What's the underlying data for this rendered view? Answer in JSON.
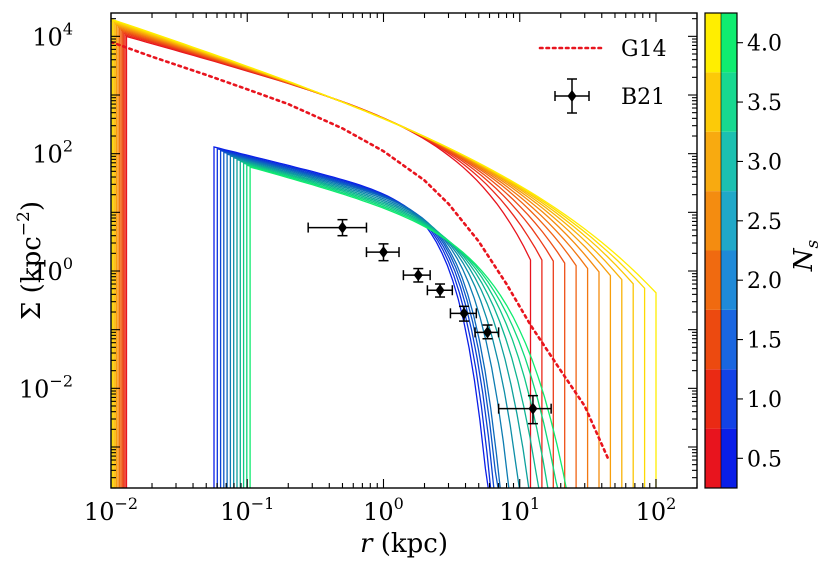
{
  "chart_data": {
    "type": "line",
    "xscale": "log",
    "yscale": "log",
    "xlabel_var": "r",
    "xlabel_unit": " (kpc)",
    "ylabel_var": "Σ",
    "ylabel_unit_open": " (kpc",
    "ylabel_unit_exp": "−2",
    "ylabel_unit_close": ")",
    "xlim": [
      0.01,
      200
    ],
    "ylim": [
      0.0002,
      25000
    ],
    "x_ticks": [
      {
        "value": 0.01,
        "base": "10",
        "exp": "−2"
      },
      {
        "value": 0.1,
        "base": "10",
        "exp": "−1"
      },
      {
        "value": 1,
        "base": "10",
        "exp": "0"
      },
      {
        "value": 10,
        "base": "10",
        "exp": "1"
      },
      {
        "value": 100,
        "base": "10",
        "exp": "2"
      }
    ],
    "y_ticks": [
      {
        "value": 0.01,
        "base": "10",
        "exp": "−2"
      },
      {
        "value": 1,
        "base": "10",
        "exp": "0"
      },
      {
        "value": 100,
        "base": "10",
        "exp": "2"
      },
      {
        "value": 10000,
        "base": "10",
        "exp": "4"
      }
    ],
    "legend": [
      {
        "name": "G14",
        "style": "dotted",
        "color": "#e8141e"
      },
      {
        "name": "B21",
        "style": "errorbar-diamond",
        "color": "#000000"
      }
    ],
    "g14_curve": [
      [
        0.01,
        8000
      ],
      [
        0.02,
        4500
      ],
      [
        0.05,
        2200
      ],
      [
        0.1,
        1250
      ],
      [
        0.2,
        700
      ],
      [
        0.5,
        270
      ],
      [
        1,
        110
      ],
      [
        2,
        35
      ],
      [
        3,
        14
      ],
      [
        5,
        3.2
      ],
      [
        8,
        0.6
      ],
      [
        12,
        0.12
      ],
      [
        20,
        0.02
      ],
      [
        30,
        0.005
      ],
      [
        45,
        0.0006
      ]
    ],
    "b21_points": [
      {
        "r": 0.5,
        "sigma": 5.5,
        "r_lo": 0.28,
        "r_hi": 0.75,
        "s_lo": 4.0,
        "s_hi": 7.5
      },
      {
        "r": 1.0,
        "sigma": 2.1,
        "r_lo": 0.75,
        "r_hi": 1.3,
        "s_lo": 1.5,
        "s_hi": 2.9
      },
      {
        "r": 1.8,
        "sigma": 0.85,
        "r_lo": 1.4,
        "r_hi": 2.2,
        "s_lo": 0.65,
        "s_hi": 1.1
      },
      {
        "r": 2.6,
        "sigma": 0.47,
        "r_lo": 2.1,
        "r_hi": 3.2,
        "s_lo": 0.36,
        "s_hi": 0.6
      },
      {
        "r": 3.9,
        "sigma": 0.19,
        "r_lo": 3.1,
        "r_hi": 4.8,
        "s_lo": 0.14,
        "s_hi": 0.25
      },
      {
        "r": 5.8,
        "sigma": 0.09,
        "r_lo": 4.7,
        "r_hi": 7.0,
        "s_lo": 0.07,
        "s_hi": 0.12
      },
      {
        "r": 12.5,
        "sigma": 0.0045,
        "r_lo": 7.0,
        "r_hi": 17.0,
        "s_lo": 0.0025,
        "s_hi": 0.0075
      }
    ],
    "profiles_high_ns": {
      "ns": [
        1.9,
        2.1,
        2.3,
        2.5,
        2.7,
        2.9,
        3.1,
        3.3,
        3.5,
        3.7,
        3.9,
        4.1
      ],
      "r_start_lo": 0.01,
      "r_start_hi": 0.013,
      "r_end_lo": 12,
      "r_end_hi": 100,
      "sigma_start_lo": 10000,
      "sigma_start_hi": 21000
    },
    "profiles_low_ns": {
      "ns": [
        0.4,
        0.5,
        0.6,
        0.7,
        0.8,
        0.9,
        1.0,
        1.1,
        1.2,
        1.3,
        1.4,
        1.5
      ],
      "r_start_lo": 0.057,
      "r_start_hi": 0.105,
      "r_end_lo": 14,
      "r_end_hi": 60,
      "sigma_start_lo": 60,
      "sigma_start_hi": 130
    },
    "colorbar": {
      "label_var": "N",
      "label_sub": "s",
      "ticks": [
        "0.5",
        "1.0",
        "1.5",
        "2.0",
        "2.5",
        "3.0",
        "3.5",
        "4.0"
      ],
      "tick_values": [
        0.5,
        1.0,
        1.5,
        2.0,
        2.5,
        3.0,
        3.5,
        4.0
      ],
      "range": [
        0.25,
        4.25
      ],
      "bands": [
        {
          "lo": 0.25,
          "hi": 0.75,
          "left": "#e8141e",
          "right": "#0a1ee8"
        },
        {
          "lo": 0.75,
          "hi": 1.25,
          "left": "#ea2a14",
          "right": "#1242e6"
        },
        {
          "lo": 1.25,
          "hi": 1.75,
          "left": "#ec4a10",
          "right": "#1a66e0"
        },
        {
          "lo": 1.75,
          "hi": 2.25,
          "left": "#f06a10",
          "right": "#1f8ad8"
        },
        {
          "lo": 2.25,
          "hi": 2.75,
          "left": "#f48c10",
          "right": "#20a8c8"
        },
        {
          "lo": 2.75,
          "hi": 3.25,
          "left": "#f8aa10",
          "right": "#1cc0b0"
        },
        {
          "lo": 3.25,
          "hi": 3.75,
          "left": "#fcca08",
          "right": "#18d890"
        },
        {
          "lo": 3.75,
          "hi": 4.25,
          "left": "#ffee00",
          "right": "#10ec70"
        }
      ]
    }
  }
}
